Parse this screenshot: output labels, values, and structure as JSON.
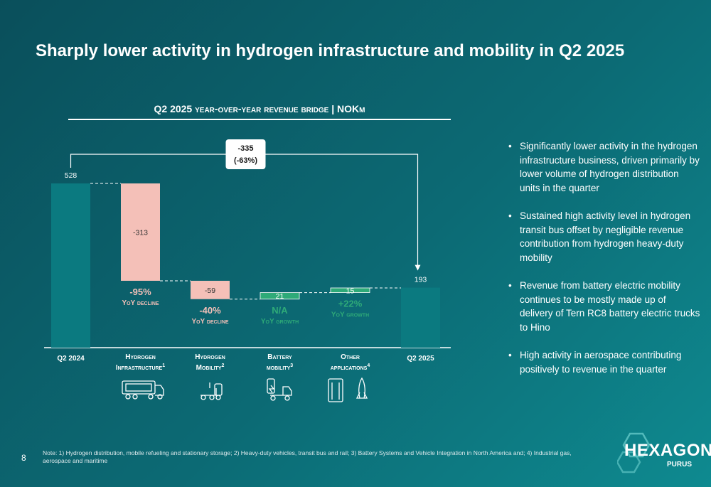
{
  "page": {
    "title": "Sharply lower activity in hydrogen infrastructure and mobility in Q2 2025",
    "page_number": "8",
    "footnote": "Note: 1) Hydrogen distribution, mobile refueling and stationary storage; 2) Heavy-duty vehicles, transit bus and rail; 3) Battery Systems and Vehicle Integration in North America and; 4) Industrial gas, aerospace and maritime",
    "logo_text": "HEXAGON",
    "logo_sub": "PURUS"
  },
  "bullets": [
    "Significantly lower activity in the hydrogen infrastructure business, driven primarily by lower volume of hydrogen distribution units in the quarter",
    "Sustained high activity level in hydrogen transit bus offset by negligible revenue contribution from hydrogen heavy-duty mobility",
    "Revenue from battery electric mobility continues to be mostly made up of delivery of Tern RC8 battery electric trucks to Hino",
    "High activity in aerospace contributing positively to revenue in the quarter"
  ],
  "chart_data": {
    "type": "waterfall",
    "title": "Q2 2025 year-over-year revenue bridge | NOKm",
    "unit": "NOKm",
    "steps": [
      {
        "label": "Q2 2024",
        "kind": "total",
        "value": 528,
        "value_label": "528",
        "icon": "none"
      },
      {
        "label": "Hydrogen",
        "label2": "Infrastructure",
        "sup": "1",
        "kind": "delta",
        "value": -313,
        "value_label": "-313",
        "pct": "-95%",
        "caption": "YoY decline",
        "icon": "truck-trailer-icon"
      },
      {
        "label": "Hydrogen",
        "label2": "Mobility",
        "sup": "2",
        "kind": "delta",
        "value": -59,
        "value_label": "-59",
        "pct": "-40%",
        "caption": "YoY decline",
        "icon": "heavy-truck-icon"
      },
      {
        "label": "Battery",
        "label2": "mobility",
        "sup": "3",
        "kind": "delta",
        "value": 21,
        "value_label": "21",
        "pct": "N/A",
        "caption": "YoY growth",
        "icon": "battery-truck-icon"
      },
      {
        "label": "Other",
        "label2": "applications",
        "sup": "4",
        "kind": "delta",
        "value": 15,
        "value_label": "15",
        "pct": "+22%",
        "caption": "YoY growth",
        "icon": "cylinders-rocket-icon"
      },
      {
        "label": "Q2 2025",
        "kind": "total",
        "value": 193,
        "value_label": "193",
        "icon": "none"
      }
    ],
    "bridge": {
      "change": "-335",
      "change_pct": "(-63%)"
    },
    "colors": {
      "total": "#0b7a80",
      "decrease": "#f4c0b8",
      "increase": "#2eaa78",
      "decline_text": "#f4c0b8",
      "growth_text": "#2eaa78"
    }
  }
}
